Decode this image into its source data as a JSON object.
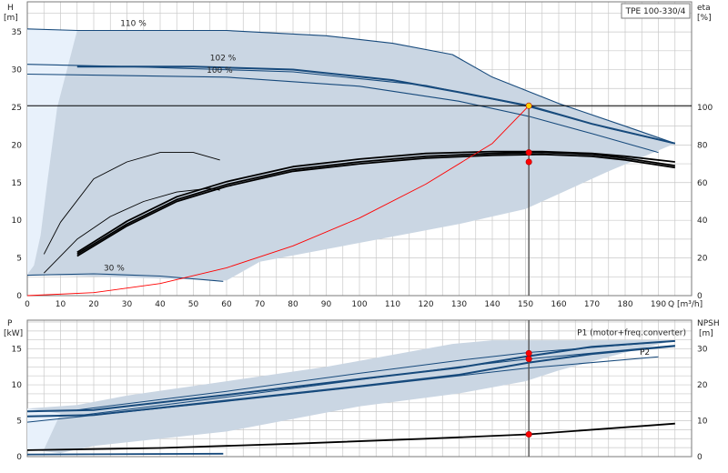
{
  "chart_data": [
    {
      "type": "line",
      "badge": "TPE 100-330/4",
      "y_axis_left": {
        "symbol": "H",
        "unit": "[m]",
        "ticks": [
          0,
          5,
          10,
          15,
          20,
          25,
          30,
          35
        ],
        "ylim": [
          0,
          39
        ]
      },
      "y_axis_right": {
        "symbol": "eta",
        "unit": "[%]",
        "ticks": [
          0,
          20,
          40,
          60,
          80,
          100
        ],
        "ylim": [
          0,
          156
        ]
      },
      "x_axis": {
        "label": "Q [m³/h]",
        "ticks": [
          0,
          10,
          20,
          30,
          40,
          50,
          60,
          70,
          80,
          90,
          100,
          110,
          120,
          130,
          140,
          150,
          160,
          170,
          180,
          190
        ],
        "xlim": [
          0,
          200
        ]
      },
      "grid": true,
      "operating_range": [
        [
          0,
          35.4
        ],
        [
          15,
          35.2
        ],
        [
          60,
          35.2
        ],
        [
          90,
          34.5
        ],
        [
          110,
          33.5
        ],
        [
          128,
          32.0
        ],
        [
          140,
          29.0
        ],
        [
          160,
          25.5
        ],
        [
          180,
          22.5
        ],
        [
          195,
          20.2
        ],
        [
          175,
          16.5
        ],
        [
          160,
          13.5
        ],
        [
          150,
          11.5
        ],
        [
          130,
          9.5
        ],
        [
          100,
          7.0
        ],
        [
          70,
          4.5
        ],
        [
          60,
          2.0
        ],
        [
          0,
          2.8
        ]
      ],
      "min_speed_region": [
        [
          0,
          35.4
        ],
        [
          15,
          35.2
        ],
        [
          9,
          25
        ],
        [
          6,
          15
        ],
        [
          4,
          8
        ],
        [
          2,
          4
        ],
        [
          0,
          2.8
        ]
      ],
      "head_curves": [
        {
          "name": "110 %",
          "points": [
            [
              0,
              35.4
            ],
            [
              15,
              35.2
            ],
            [
              60,
              35.2
            ],
            [
              90,
              34.5
            ],
            [
              110,
              33.5
            ],
            [
              128,
              32.0
            ],
            [
              140,
              29.0
            ],
            [
              160,
              25.5
            ],
            [
              180,
              22.5
            ],
            [
              195,
              20.2
            ]
          ]
        },
        {
          "name": "102 %",
          "points": [
            [
              15,
              30.4
            ],
            [
              50,
              30.4
            ],
            [
              80,
              30.0
            ],
            [
              110,
              28.6
            ],
            [
              130,
              27.0
            ],
            [
              151,
              25.2
            ],
            [
              170,
              22.8
            ],
            [
              195,
              20.2
            ]
          ]
        },
        {
          "name": "100 %",
          "points": [
            [
              0,
              29.4
            ],
            [
              60,
              29.0
            ],
            [
              100,
              27.8
            ],
            [
              130,
              25.8
            ],
            [
              151,
              23.8
            ],
            [
              170,
              21.5
            ],
            [
              190,
              19.0
            ]
          ]
        },
        {
          "name": "",
          "points": [
            [
              0,
              30.7
            ],
            [
              30,
              30.4
            ],
            [
              80,
              29.7
            ],
            [
              120,
              27.9
            ],
            [
              150,
              25.2
            ],
            [
              175,
              22.2
            ],
            [
              195,
              20.2
            ]
          ]
        },
        {
          "name": "30 %",
          "points": [
            [
              0,
              2.7
            ],
            [
              20,
              2.9
            ],
            [
              40,
              2.6
            ],
            [
              59,
              1.9
            ]
          ]
        }
      ],
      "efficiency_curves": [
        {
          "name": "",
          "points": [
            [
              15,
              21
            ],
            [
              30,
              37
            ],
            [
              45,
              50
            ],
            [
              60,
              58
            ],
            [
              80,
              66
            ],
            [
              100,
              70
            ],
            [
              120,
              73
            ],
            [
              140,
              74.5
            ],
            [
              155,
              75
            ],
            [
              170,
              74
            ],
            [
              180,
              72
            ],
            [
              195,
              68
            ]
          ]
        },
        {
          "name": "",
          "points": [
            [
              15,
              22
            ],
            [
              30,
              38
            ],
            [
              45,
              51
            ],
            [
              60,
              59
            ],
            [
              80,
              67
            ],
            [
              100,
              71
            ],
            [
              120,
              74
            ],
            [
              140,
              75.5
            ],
            [
              155,
              76
            ],
            [
              170,
              75
            ],
            [
              180,
              73
            ],
            [
              195,
              69
            ]
          ]
        },
        {
          "name": "",
          "points": [
            [
              15,
              23
            ],
            [
              30,
              39.5
            ],
            [
              45,
              52.5
            ],
            [
              60,
              60.5
            ],
            [
              80,
              68.5
            ],
            [
              100,
              72.5
            ],
            [
              120,
              75.5
            ],
            [
              140,
              76.5
            ],
            [
              155,
              76.5
            ],
            [
              170,
              75.5
            ],
            [
              180,
              74
            ],
            [
              195,
              71
            ]
          ]
        },
        {
          "name": "",
          "points": [
            [
              5,
              12
            ],
            [
              15,
              30
            ],
            [
              25,
              42
            ],
            [
              35,
              50
            ],
            [
              45,
              55
            ],
            [
              55,
              57
            ],
            [
              58,
              56
            ]
          ]
        },
        {
          "name": "",
          "points": [
            [
              5,
              22
            ],
            [
              10,
              39
            ],
            [
              20,
              62
            ],
            [
              30,
              71
            ],
            [
              40,
              76
            ],
            [
              50,
              76
            ],
            [
              58,
              72
            ]
          ]
        }
      ],
      "system_curve": [
        [
          0,
          0
        ],
        [
          20,
          0.4
        ],
        [
          40,
          1.6
        ],
        [
          60,
          3.7
        ],
        [
          80,
          6.6
        ],
        [
          100,
          10.3
        ],
        [
          120,
          14.8
        ],
        [
          140,
          20.2
        ],
        [
          151,
          25.2
        ]
      ],
      "operating_point": {
        "Q": 151,
        "H": 25.2,
        "eta": 77
      },
      "series_labels": [
        "110 %",
        "102 %",
        "100 %",
        "30 %"
      ]
    },
    {
      "type": "line",
      "y_axis_left": {
        "symbol": "P",
        "unit": "[kW]",
        "ticks": [
          0,
          5,
          10,
          15
        ],
        "ylim": [
          0,
          19
        ]
      },
      "y_axis_right": {
        "symbol": "NPSH",
        "unit": "[m]",
        "ticks": [
          0,
          10,
          20,
          30
        ],
        "ylim": [
          0,
          38
        ]
      },
      "x_axis": {
        "xlim": [
          0,
          200
        ]
      },
      "grid": true,
      "operating_range": [
        [
          0,
          6.7
        ],
        [
          15,
          7.2
        ],
        [
          30,
          8.5
        ],
        [
          60,
          10.5
        ],
        [
          90,
          12.5
        ],
        [
          128,
          15.7
        ],
        [
          140,
          16.2
        ],
        [
          195,
          16.2
        ],
        [
          180,
          14.5
        ],
        [
          160,
          12.0
        ],
        [
          150,
          10.5
        ],
        [
          130,
          8.8
        ],
        [
          100,
          7.0
        ],
        [
          60,
          3.5
        ],
        [
          20,
          1.5
        ],
        [
          10,
          0.5
        ],
        [
          0,
          1.0
        ]
      ],
      "min_speed_region": [
        [
          0,
          6.7
        ],
        [
          10,
          6.0
        ],
        [
          5,
          1.0
        ],
        [
          0,
          1.0
        ]
      ],
      "power_curves": [
        {
          "name": "P1 (motor+freq.converter)",
          "points": [
            [
              0,
              6.3
            ],
            [
              20,
              6.5
            ],
            [
              60,
              8.6
            ],
            [
              100,
              10.8
            ],
            [
              130,
              12.4
            ],
            [
              151,
              14.0
            ],
            [
              170,
              15.3
            ],
            [
              195,
              16.1
            ]
          ]
        },
        {
          "name": "P2",
          "points": [
            [
              0,
              5.6
            ],
            [
              20,
              5.8
            ],
            [
              60,
              7.8
            ],
            [
              100,
              9.8
            ],
            [
              130,
              11.4
            ],
            [
              151,
              13.1
            ],
            [
              170,
              14.3
            ],
            [
              195,
              15.4
            ]
          ]
        },
        {
          "name": "",
          "points": [
            [
              15,
              5.7
            ],
            [
              60,
              8.3
            ],
            [
              100,
              10.7
            ],
            [
              130,
              12.5
            ],
            [
              151,
              13.6
            ],
            [
              195,
              15.5
            ]
          ]
        },
        {
          "name": "",
          "points": [
            [
              15,
              6.5
            ],
            [
              60,
              9.1
            ],
            [
              100,
              11.6
            ],
            [
              130,
              13.4
            ],
            [
              151,
              14.5
            ],
            [
              195,
              16.1
            ]
          ]
        },
        {
          "name": "",
          "points": [
            [
              0,
              4.8
            ],
            [
              60,
              7.7
            ],
            [
              100,
              9.7
            ],
            [
              150,
              12.3
            ],
            [
              190,
              13.9
            ]
          ]
        }
      ],
      "low_power_curve": [
        [
          0,
          0.3
        ],
        [
          59,
          0.4
        ]
      ],
      "npsh_curve": [
        [
          0,
          1.8
        ],
        [
          40,
          2.4
        ],
        [
          80,
          3.6
        ],
        [
          120,
          5.0
        ],
        [
          151,
          6.2
        ],
        [
          195,
          9.2
        ]
      ],
      "operating_point": {
        "Q": 151,
        "P1": 14.4,
        "P2": 13.6,
        "NPSH": 6.2
      },
      "series_labels": [
        "P1 (motor+freq.converter)",
        "P2"
      ]
    }
  ],
  "colors": {
    "region_fill": "#cad6e3",
    "min_speed_fill": "#e8f1fb",
    "curve_blue": "#174a7c",
    "curve_black": "#000000",
    "system_red": "#ff0000",
    "op_point_red": "#ff0000",
    "op_point_yellow": "#ffd200"
  }
}
